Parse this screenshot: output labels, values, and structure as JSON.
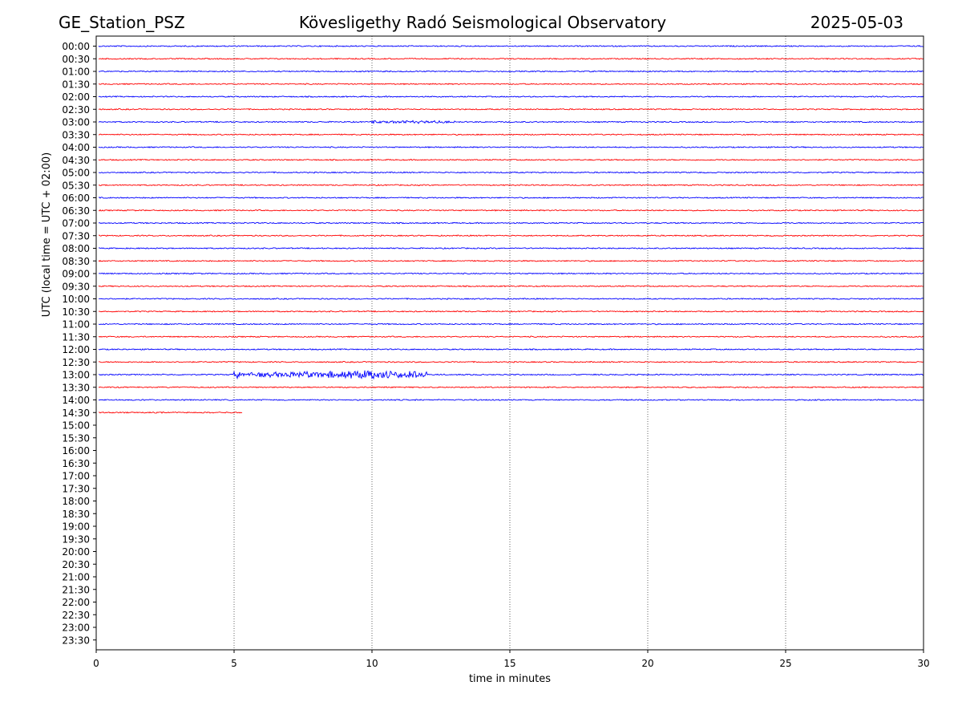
{
  "header": {
    "station": "GE_Station_PSZ",
    "observatory": "Kövesligethy Radó Seismological Observatory",
    "date": "2025-05-03"
  },
  "chart_data": {
    "type": "line",
    "title": "Kövesligethy Radó Seismological Observatory",
    "xlabel": "time in minutes",
    "ylabel": "UTC (local time = UTC + 02:00)",
    "xlim": [
      0,
      30
    ],
    "xticks": [
      "0",
      "5",
      "10",
      "15",
      "20",
      "25",
      "30"
    ],
    "grid": "vertical dotted lines at x = 5, 10, 15, 20, 25",
    "series_colors": {
      "hour_rows": "#0000ff",
      "half_hour_rows": "#ff0000"
    },
    "rows": [
      "00:00",
      "00:30",
      "01:00",
      "01:30",
      "02:00",
      "02:30",
      "03:00",
      "03:30",
      "04:00",
      "04:30",
      "05:00",
      "05:30",
      "06:00",
      "06:30",
      "07:00",
      "07:30",
      "08:00",
      "08:30",
      "09:00",
      "09:30",
      "10:00",
      "10:30",
      "11:00",
      "11:30",
      "12:00",
      "12:30",
      "13:00",
      "13:30",
      "14:00",
      "14:30",
      "15:00",
      "15:30",
      "16:00",
      "16:30",
      "17:00",
      "17:30",
      "18:00",
      "18:30",
      "19:00",
      "19:30",
      "20:00",
      "20:30",
      "21:00",
      "21:30",
      "22:00",
      "22:30",
      "23:00",
      "23:30"
    ],
    "traces_recorded": 30,
    "last_trace_end_minute": 5.3,
    "events": [
      {
        "row": "03:00",
        "start_minute": 10.0,
        "end_minute": 13.0,
        "peak_amplitude": 0.25
      },
      {
        "row": "13:00",
        "start_minute": 5.0,
        "end_minute": 12.0,
        "peak_amplitude": 1.0,
        "peak_minute": 9.8
      }
    ]
  }
}
